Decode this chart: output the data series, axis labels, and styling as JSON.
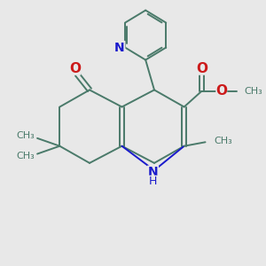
{
  "bg_color": "#e8e8e8",
  "bond_color": "#4a7a6a",
  "N_color": "#1a1acc",
  "O_color": "#cc1a1a",
  "line_width": 1.4,
  "font_size": 9,
  "fig_size": [
    3.0,
    3.0
  ],
  "dpi": 100,
  "xlim": [
    0,
    10
  ],
  "ylim": [
    0,
    10
  ]
}
